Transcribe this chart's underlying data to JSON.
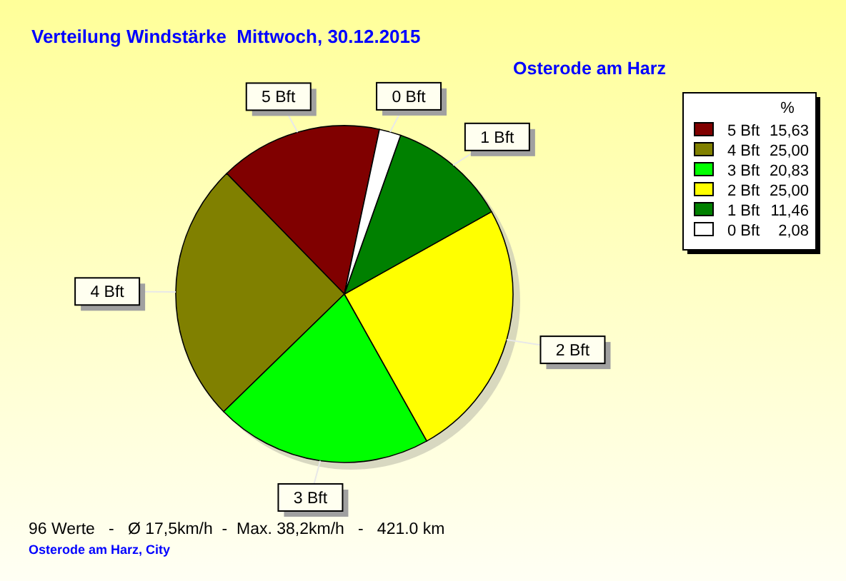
{
  "chart_data": {
    "type": "pie",
    "title": "Verteilung Windstärke  Mittwoch, 30.12.2015",
    "subtitle": "Osterode am Harz",
    "categories": [
      "5 Bft",
      "4 Bft",
      "3 Bft",
      "2 Bft",
      "1 Bft",
      "0 Bft"
    ],
    "values": [
      15.63,
      25.0,
      20.83,
      25.0,
      11.46,
      2.08
    ],
    "value_labels": [
      "15,63",
      "25,00",
      "20,83",
      "25,00",
      "11,46",
      "2,08"
    ],
    "colors": [
      "#800000",
      "#808000",
      "#00ff00",
      "#ffff00",
      "#008000",
      "#ffffff"
    ],
    "legend": "top right",
    "legend_title": "%",
    "annotations": [
      "96 Werte   -   Ø 17,5km/h  -  Max. 38,2km/h   -   421.0 km",
      "Osterode am Harz, City"
    ]
  }
}
